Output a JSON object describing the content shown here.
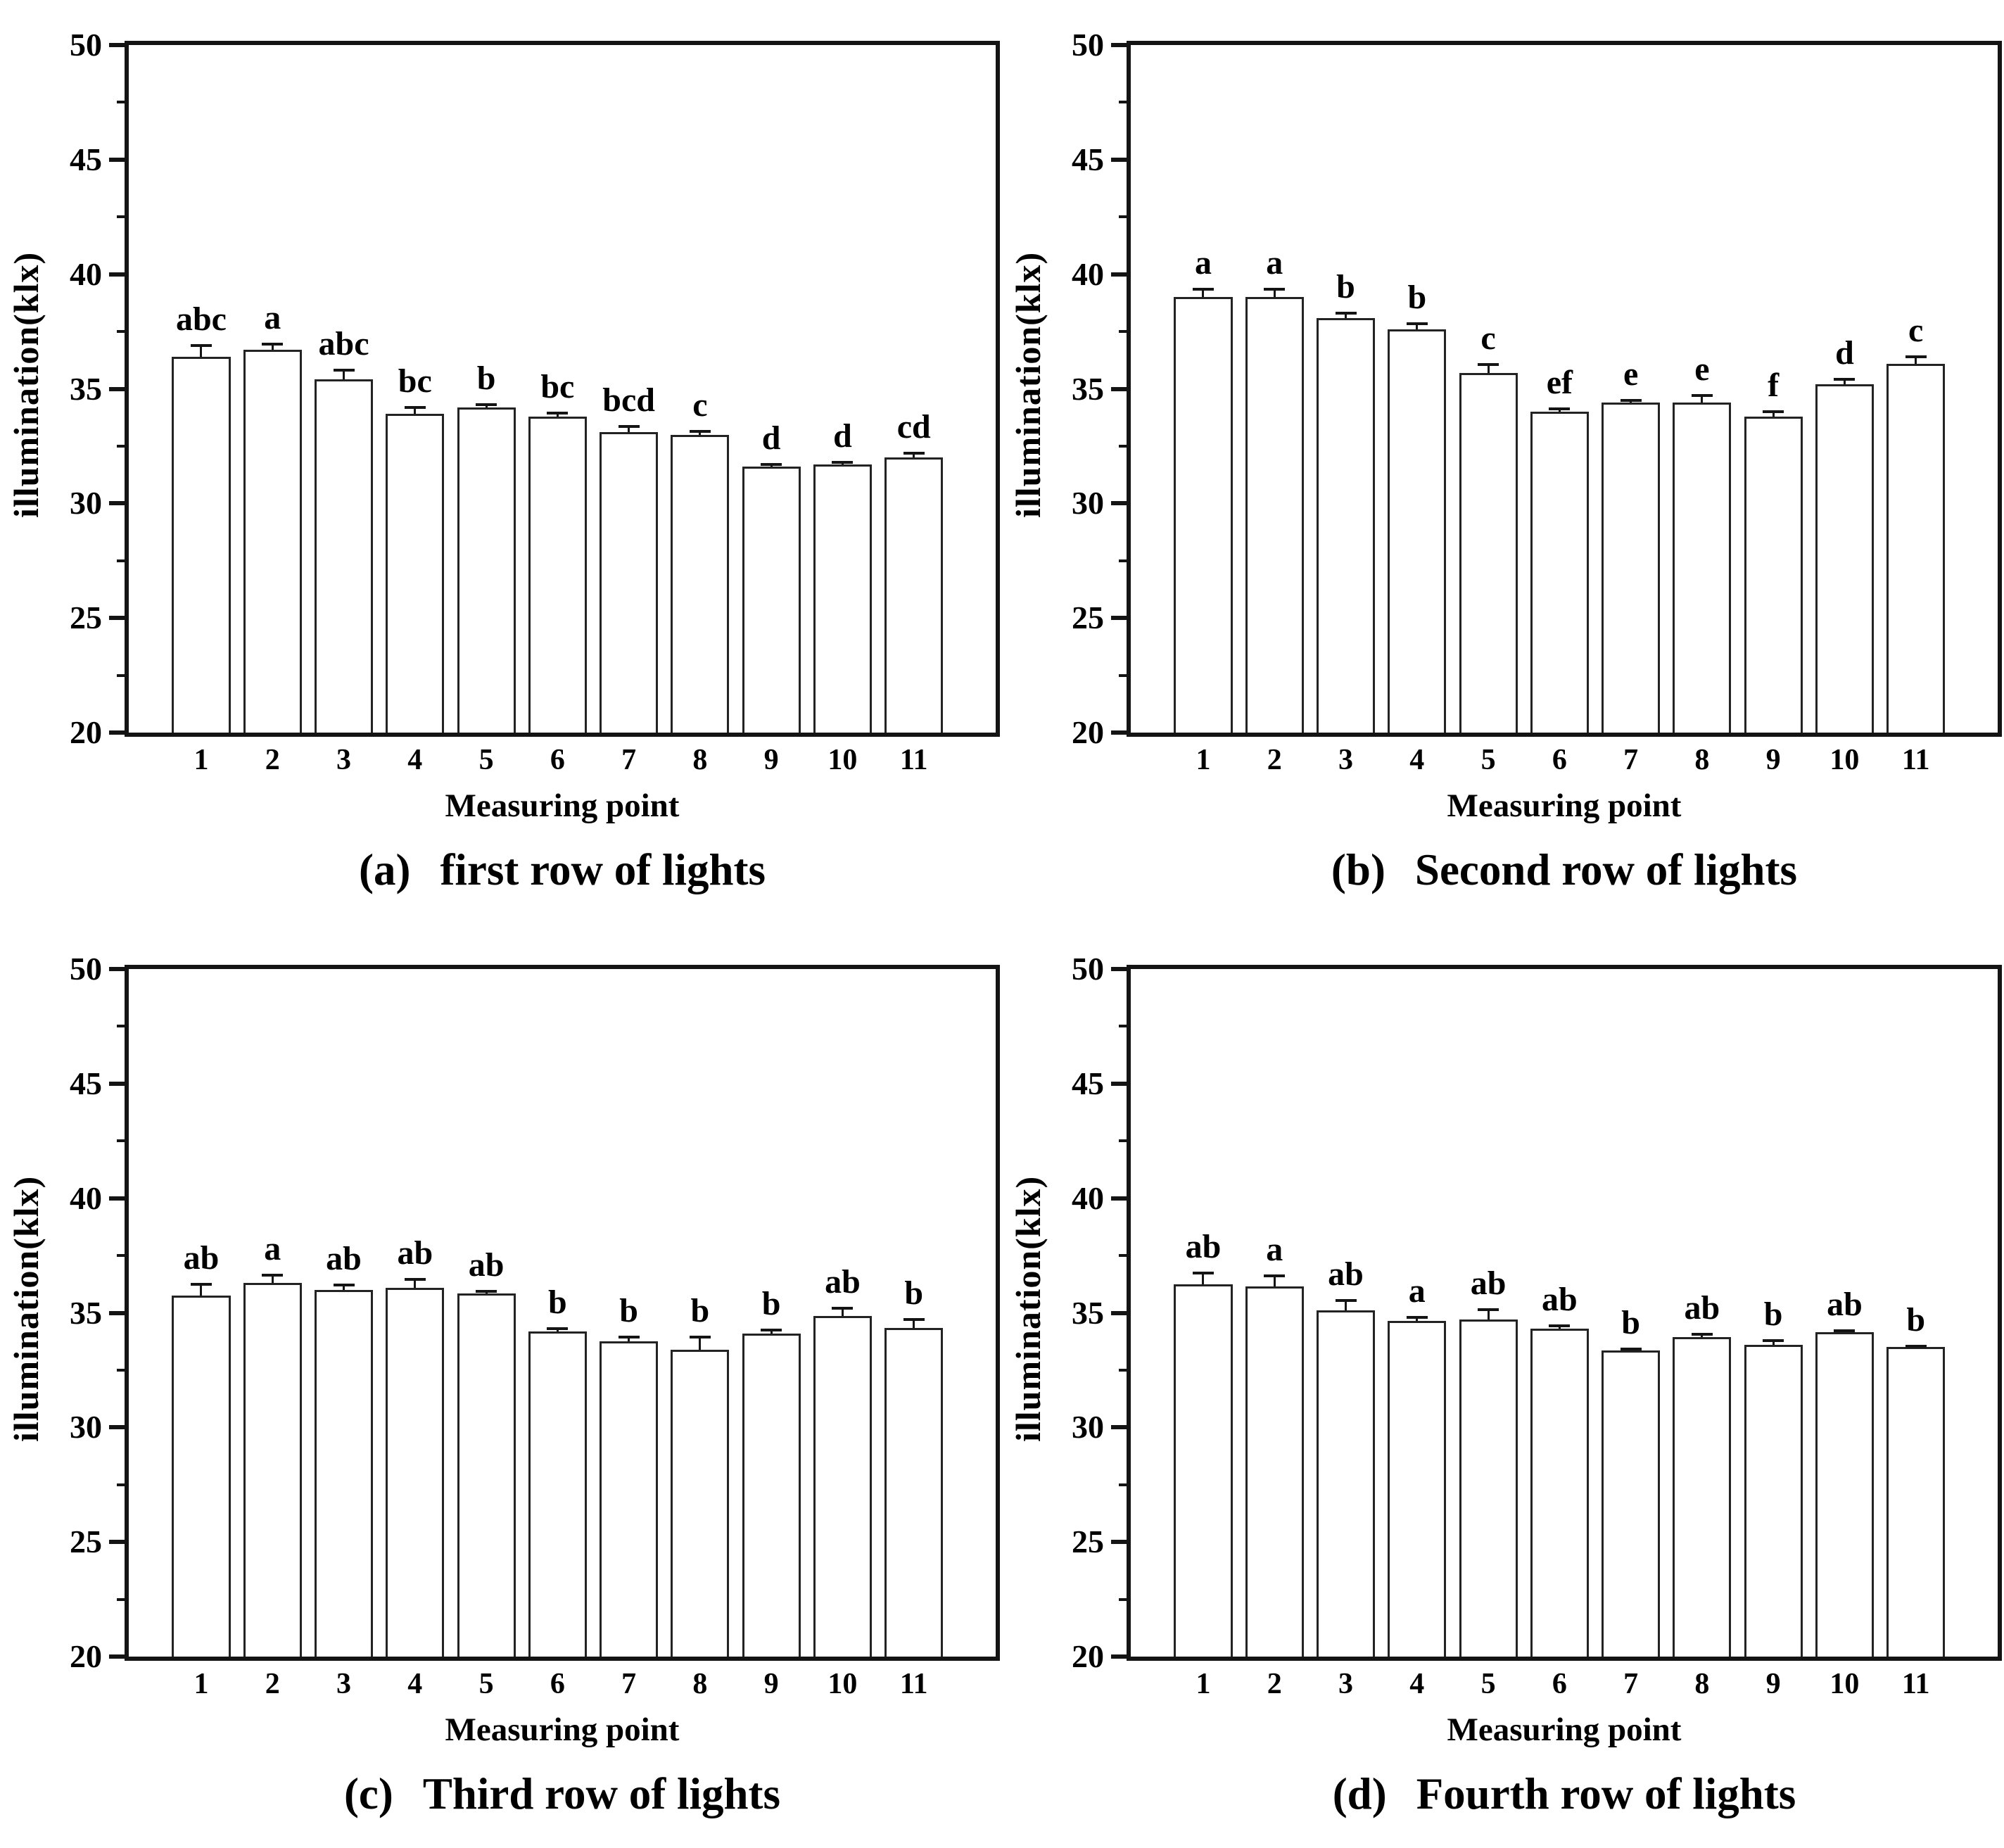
{
  "figure": {
    "background": "#ffffff",
    "text_color": "#000000",
    "axis_color": "#141414",
    "bar_fill": "#ffffff",
    "bar_border": "#232323"
  },
  "chart_data": [
    {
      "type": "bar",
      "panel": "a",
      "caption_prefix": "(a)",
      "caption": "first row of lights",
      "xlabel": "Measuring point",
      "ylabel": "illumination(klx)",
      "categories": [
        "1",
        "2",
        "3",
        "4",
        "5",
        "6",
        "7",
        "8",
        "9",
        "10",
        "11"
      ],
      "values": [
        36.4,
        36.7,
        35.4,
        33.9,
        34.2,
        33.8,
        33.1,
        33.0,
        31.6,
        31.7,
        32.0
      ],
      "errors": [
        0.5,
        0.25,
        0.4,
        0.3,
        0.1,
        0.15,
        0.25,
        0.15,
        0.1,
        0.08,
        0.2
      ],
      "sig_letters": [
        "abc",
        "a",
        "abc",
        "bc",
        "b",
        "bc",
        "bcd",
        "c",
        "d",
        "d",
        "cd"
      ],
      "ylim": [
        20,
        50
      ],
      "ytick_major": 5,
      "ytick_minor": 2.5,
      "grid": "off",
      "legend": "none"
    },
    {
      "type": "bar",
      "panel": "b",
      "caption_prefix": "(b)",
      "caption": "Second row of lights",
      "xlabel": "Measuring point",
      "ylabel": "illumination(klx)",
      "categories": [
        "1",
        "2",
        "3",
        "4",
        "5",
        "6",
        "7",
        "8",
        "9",
        "10",
        "11"
      ],
      "values": [
        39.0,
        39.0,
        38.1,
        37.6,
        35.7,
        34.0,
        34.4,
        34.4,
        33.8,
        35.2,
        36.1
      ],
      "errors": [
        0.35,
        0.35,
        0.2,
        0.25,
        0.35,
        0.12,
        0.08,
        0.3,
        0.2,
        0.2,
        0.3
      ],
      "sig_letters": [
        "a",
        "a",
        "b",
        "b",
        "c",
        "ef",
        "e",
        "e",
        "f",
        "d",
        "c"
      ],
      "ylim": [
        20,
        50
      ],
      "ytick_major": 5,
      "ytick_minor": 2.5,
      "grid": "off",
      "legend": "none"
    },
    {
      "type": "bar",
      "panel": "c",
      "caption_prefix": "(c)",
      "caption": "Third row of lights",
      "xlabel": "Measuring point",
      "ylabel": "illumination(klx)",
      "categories": [
        "1",
        "2",
        "3",
        "4",
        "5",
        "6",
        "7",
        "8",
        "9",
        "10",
        "11"
      ],
      "values": [
        35.75,
        36.3,
        36.0,
        36.1,
        35.85,
        34.2,
        33.75,
        33.4,
        34.1,
        34.85,
        34.35
      ],
      "errors": [
        0.5,
        0.35,
        0.2,
        0.35,
        0.08,
        0.1,
        0.2,
        0.55,
        0.15,
        0.35,
        0.35
      ],
      "sig_letters": [
        "ab",
        "a",
        "ab",
        "ab",
        "ab",
        "b",
        "b",
        "b",
        "b",
        "ab",
        "b"
      ],
      "ylim": [
        20,
        50
      ],
      "ytick_major": 5,
      "ytick_minor": 2.5,
      "grid": "off",
      "legend": "none"
    },
    {
      "type": "bar",
      "panel": "d",
      "caption_prefix": "(d)",
      "caption": "Fourth row of lights",
      "xlabel": "Measuring point",
      "ylabel": "illumination(klx)",
      "categories": [
        "1",
        "2",
        "3",
        "4",
        "5",
        "6",
        "7",
        "8",
        "9",
        "10",
        "11"
      ],
      "values": [
        36.25,
        36.15,
        35.1,
        34.65,
        34.7,
        34.3,
        33.35,
        33.95,
        33.6,
        34.15,
        33.5
      ],
      "errors": [
        0.5,
        0.45,
        0.45,
        0.15,
        0.45,
        0.12,
        0.08,
        0.12,
        0.18,
        0.08,
        0.05
      ],
      "sig_letters": [
        "ab",
        "a",
        "ab",
        "a",
        "ab",
        "ab",
        "b",
        "ab",
        "b",
        "ab",
        "b"
      ],
      "ylim": [
        20,
        50
      ],
      "ytick_major": 5,
      "ytick_minor": 2.5,
      "grid": "off",
      "legend": "none"
    }
  ]
}
